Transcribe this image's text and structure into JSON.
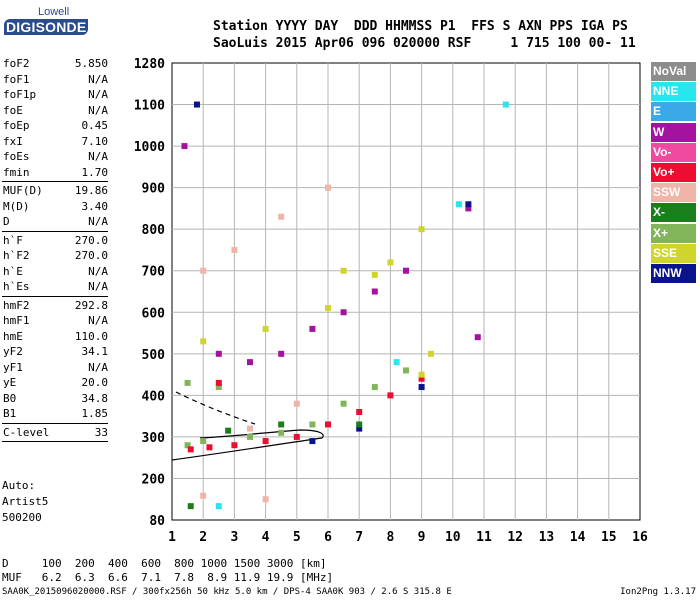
{
  "logo": {
    "line1": "Lowell",
    "line2": "DIGISONDE"
  },
  "header": {
    "line1": "Station YYYY DAY  DDD HHMMSS P1  FFS S AXN PPS IGA PS",
    "line2": "SaoLuis 2015 Apr06 096 020000 RSF     1 715 100 00- 11"
  },
  "params_group1": [
    {
      "k": "foF2",
      "v": "5.850"
    },
    {
      "k": "foF1",
      "v": "N/A"
    },
    {
      "k": "foF1p",
      "v": "N/A"
    },
    {
      "k": "foE",
      "v": "N/A"
    },
    {
      "k": "foEp",
      "v": "0.45"
    },
    {
      "k": "fxI",
      "v": "7.10"
    },
    {
      "k": "foEs",
      "v": "N/A"
    },
    {
      "k": "fmin",
      "v": "1.70"
    }
  ],
  "params_group2": [
    {
      "k": "MUF(D)",
      "v": "19.86"
    },
    {
      "k": "M(D)",
      "v": "3.40"
    },
    {
      "k": "D",
      "v": "N/A"
    }
  ],
  "params_group3": [
    {
      "k": "h`F",
      "v": "270.0"
    },
    {
      "k": "h`F2",
      "v": "270.0"
    },
    {
      "k": "h`E",
      "v": "N/A"
    },
    {
      "k": "h`Es",
      "v": "N/A"
    }
  ],
  "params_group4": [
    {
      "k": "hmF2",
      "v": "292.8"
    },
    {
      "k": "hmF1",
      "v": "N/A"
    },
    {
      "k": "hmE",
      "v": "110.0"
    },
    {
      "k": "yF2",
      "v": "34.1"
    },
    {
      "k": "yF1",
      "v": "N/A"
    },
    {
      "k": "yE",
      "v": "20.0"
    },
    {
      "k": "B0",
      "v": "34.8"
    },
    {
      "k": "B1",
      "v": "1.85"
    }
  ],
  "params_group5": [
    {
      "k": "C-level",
      "v": "33"
    }
  ],
  "auto": {
    "line1": "Auto:",
    "line2": "Artist5",
    "line3": "500200"
  },
  "legend": [
    {
      "label": "NoVal",
      "color": "#8c8c8c"
    },
    {
      "label": "NNE",
      "color": "#27e6f0"
    },
    {
      "label": "E",
      "color": "#3aa9e8"
    },
    {
      "label": "W",
      "color": "#a5129f"
    },
    {
      "label": "Vo-",
      "color": "#f049a0"
    },
    {
      "label": "Vo+",
      "color": "#ec0d30"
    },
    {
      "label": "SSW",
      "color": "#f0b4a8"
    },
    {
      "label": "X-",
      "color": "#1a7f1a"
    },
    {
      "label": "X+",
      "color": "#82b45a"
    },
    {
      "label": "SSE",
      "color": "#cfd52a"
    },
    {
      "label": "NNW",
      "color": "#0a138c"
    }
  ],
  "chart_data": {
    "type": "scatter",
    "xticks": [
      "1",
      "2",
      "3",
      "4",
      "5",
      "6",
      "7",
      "8",
      "9",
      "10",
      "11",
      "12",
      "13",
      "14",
      "15",
      "16"
    ],
    "yticks": [
      "1280",
      "1100",
      "1000",
      "900",
      "800",
      "700",
      "600",
      "500",
      "400",
      "300",
      "200",
      "80"
    ],
    "xlim": [
      1,
      16
    ],
    "ylim": [
      80,
      1280
    ],
    "grid": true,
    "series": [
      {
        "name": "X+",
        "color": "#82b45a",
        "points": [
          [
            1.5,
            280
          ],
          [
            2.0,
            290
          ],
          [
            3.5,
            300
          ],
          [
            4.5,
            310
          ],
          [
            5.5,
            330
          ],
          [
            6.5,
            380
          ],
          [
            7.5,
            420
          ],
          [
            8.5,
            460
          ],
          [
            1.5,
            430
          ],
          [
            2.5,
            420
          ]
        ]
      },
      {
        "name": "Vo+",
        "color": "#ec0d30",
        "points": [
          [
            1.6,
            270
          ],
          [
            2.2,
            275
          ],
          [
            3.0,
            280
          ],
          [
            4.0,
            290
          ],
          [
            5.0,
            300
          ],
          [
            6.0,
            330
          ],
          [
            7.0,
            360
          ],
          [
            8.0,
            400
          ],
          [
            9.0,
            440
          ],
          [
            2.5,
            430
          ]
        ]
      },
      {
        "name": "W",
        "color": "#a5129f",
        "points": [
          [
            1.4,
            1000
          ],
          [
            2.5,
            500
          ],
          [
            3.5,
            480
          ],
          [
            4.5,
            500
          ],
          [
            5.5,
            560
          ],
          [
            6.5,
            600
          ],
          [
            7.5,
            650
          ],
          [
            8.5,
            700
          ],
          [
            10.5,
            850
          ],
          [
            10.8,
            540
          ]
        ]
      },
      {
        "name": "SSE",
        "color": "#cfd52a",
        "points": [
          [
            2.0,
            530
          ],
          [
            4.0,
            560
          ],
          [
            6.0,
            610
          ],
          [
            8.0,
            720
          ],
          [
            9.0,
            800
          ],
          [
            9.3,
            500
          ],
          [
            9.0,
            450
          ],
          [
            6.5,
            700
          ],
          [
            7.5,
            690
          ]
        ]
      },
      {
        "name": "SSW",
        "color": "#f0b4a8",
        "points": [
          [
            2.0,
            700
          ],
          [
            3.0,
            750
          ],
          [
            4.5,
            830
          ],
          [
            6.0,
            900
          ],
          [
            3.5,
            320
          ],
          [
            5.0,
            380
          ],
          [
            4.0,
            140
          ],
          [
            2.0,
            150
          ]
        ]
      },
      {
        "name": "NNW",
        "color": "#0a138c",
        "points": [
          [
            1.8,
            1100
          ],
          [
            5.5,
            290
          ],
          [
            7.0,
            320
          ],
          [
            9.0,
            420
          ],
          [
            10.5,
            860
          ]
        ]
      },
      {
        "name": "NNE",
        "color": "#27e6f0",
        "points": [
          [
            10.2,
            860
          ],
          [
            11.7,
            1100
          ],
          [
            8.2,
            480
          ],
          [
            2.5,
            120
          ]
        ]
      },
      {
        "name": "X-",
        "color": "#1a7f1a",
        "points": [
          [
            1.6,
            120
          ],
          [
            2.8,
            315
          ],
          [
            4.5,
            330
          ],
          [
            7.0,
            330
          ]
        ]
      }
    ],
    "d_table": {
      "D_row": "D     100  200  400  600  800 1000 1500 3000 [km]",
      "MUF_row": "MUF   6.2  6.3  6.6  7.1  7.8  8.9 11.9 19.9 [MHz]"
    }
  },
  "footer": "SAA0K_2015096020000.RSF / 300fx256h 50 kHz 5.0 km / DPS-4 SAA0K 903 / 2.6 S 315.8 E",
  "version": "Ion2Png 1.3.17"
}
